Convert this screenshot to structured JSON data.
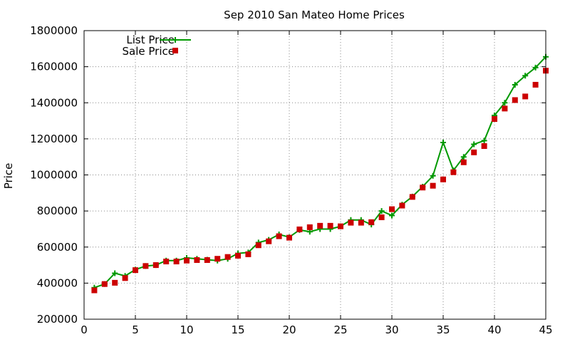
{
  "chart_data": {
    "type": "line",
    "title": "Sep 2010 San Mateo Home Prices",
    "xlabel": "",
    "ylabel": "Price",
    "xlim": [
      0,
      45
    ],
    "ylim": [
      200000,
      1800000
    ],
    "xticks": [
      0,
      5,
      10,
      15,
      20,
      25,
      30,
      35,
      40,
      45
    ],
    "yticks": [
      200000,
      400000,
      600000,
      800000,
      1000000,
      1200000,
      1400000,
      1600000,
      1800000
    ],
    "grid": true,
    "legend_position": "top-left",
    "x": [
      1,
      2,
      3,
      4,
      5,
      6,
      7,
      8,
      9,
      10,
      11,
      12,
      13,
      14,
      15,
      16,
      17,
      18,
      19,
      20,
      21,
      22,
      23,
      24,
      25,
      26,
      27,
      28,
      29,
      30,
      31,
      32,
      33,
      34,
      35,
      36,
      37,
      38,
      39,
      40,
      41,
      42,
      43,
      44,
      45
    ],
    "series": [
      {
        "name": "List Price",
        "style": "line-plus",
        "color": "#009900",
        "values": [
          375000,
          395000,
          455000,
          440000,
          475000,
          495000,
          500000,
          525000,
          525000,
          540000,
          535000,
          530000,
          525000,
          535000,
          565000,
          570000,
          625000,
          640000,
          670000,
          655000,
          695000,
          685000,
          700000,
          700000,
          715000,
          750000,
          750000,
          725000,
          800000,
          775000,
          835000,
          880000,
          935000,
          995000,
          1180000,
          1025000,
          1100000,
          1170000,
          1190000,
          1330000,
          1400000,
          1500000,
          1550000,
          1595000,
          1655000
        ]
      },
      {
        "name": "Sale Price",
        "style": "square-points",
        "color": "#cc0000",
        "values": [
          360000,
          395000,
          402000,
          428000,
          472000,
          495000,
          500000,
          520000,
          520000,
          525000,
          528000,
          528000,
          535000,
          545000,
          552000,
          560000,
          610000,
          632000,
          660000,
          652000,
          698000,
          710000,
          718000,
          718000,
          715000,
          735000,
          735000,
          738000,
          765000,
          810000,
          830000,
          878000,
          930000,
          940000,
          975000,
          1015000,
          1070000,
          1125000,
          1160000,
          1310000,
          1368000,
          1415000,
          1435000,
          1500000,
          1578000
        ]
      }
    ]
  }
}
